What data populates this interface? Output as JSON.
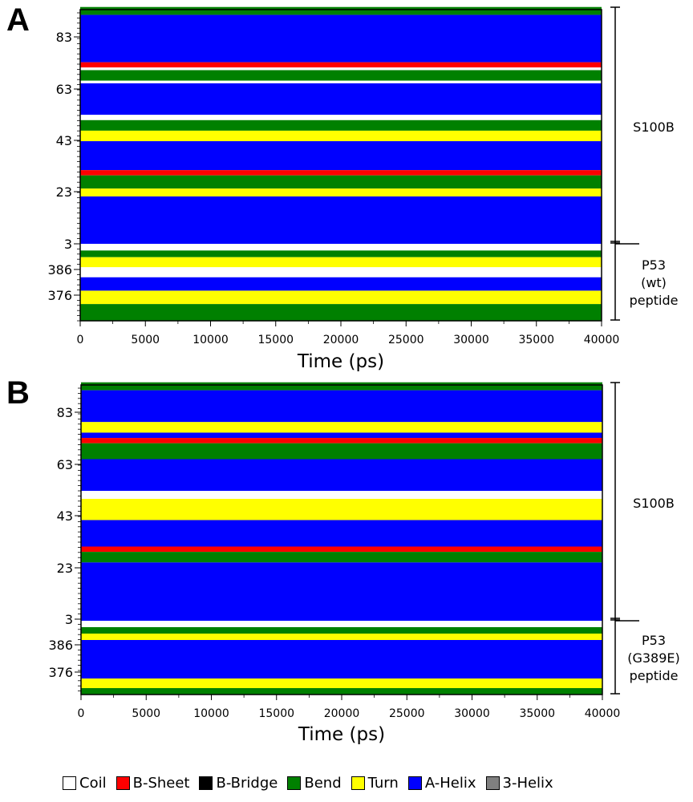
{
  "chart_data": [
    {
      "type": "heatmap",
      "panel_label": "A",
      "xlabel": "Time (ps)",
      "xlim": [
        0,
        40000
      ],
      "x_ticks": [
        0,
        5000,
        10000,
        15000,
        20000,
        25000,
        30000,
        35000,
        40000
      ],
      "x_tick_labels": [
        "0",
        "5000",
        "10000",
        "15000",
        "20000",
        "25000",
        "30000",
        "35000",
        "40000"
      ],
      "y_tick_labels": [
        "83",
        "63",
        "43",
        "23",
        "3",
        "386",
        "376"
      ],
      "regions": [
        {
          "name": "S100B",
          "label_lines": [
            "S100B"
          ],
          "residues": [
            3,
            92
          ]
        },
        {
          "name": "P53 (wt) peptide",
          "label_lines": [
            "P53",
            "(wt)",
            "peptide"
          ],
          "residues": [
            367,
            390
          ]
        }
      ],
      "bands": [
        {
          "region": 0,
          "from": 90,
          "to": 93,
          "state": "Bend"
        },
        {
          "region": 0,
          "from": 72,
          "to": 90,
          "state": "A-Helix"
        },
        {
          "region": 0,
          "from": 70,
          "to": 72,
          "state": "B-Sheet"
        },
        {
          "region": 0,
          "from": 69,
          "to": 70,
          "state": "Coil"
        },
        {
          "region": 0,
          "from": 65,
          "to": 69,
          "state": "Bend"
        },
        {
          "region": 0,
          "from": 64,
          "to": 65,
          "state": "Coil"
        },
        {
          "region": 0,
          "from": 52,
          "to": 64,
          "state": "A-Helix"
        },
        {
          "region": 0,
          "from": 50,
          "to": 52,
          "state": "Coil"
        },
        {
          "region": 0,
          "from": 46,
          "to": 50,
          "state": "Bend"
        },
        {
          "region": 0,
          "from": 42,
          "to": 46,
          "state": "Turn"
        },
        {
          "region": 0,
          "from": 31,
          "to": 42,
          "state": "A-Helix"
        },
        {
          "region": 0,
          "from": 29,
          "to": 31,
          "state": "B-Sheet"
        },
        {
          "region": 0,
          "from": 24,
          "to": 29,
          "state": "Bend"
        },
        {
          "region": 0,
          "from": 21,
          "to": 24,
          "state": "Turn"
        },
        {
          "region": 0,
          "from": 3,
          "to": 21,
          "state": "A-Helix"
        },
        {
          "region": 1,
          "from": 388,
          "to": 390,
          "state": "Coil"
        },
        {
          "region": 1,
          "from": 386,
          "to": 388,
          "state": "Bend"
        },
        {
          "region": 1,
          "from": 383,
          "to": 386,
          "state": "Turn"
        },
        {
          "region": 1,
          "from": 380,
          "to": 383,
          "state": "Coil"
        },
        {
          "region": 1,
          "from": 376,
          "to": 380,
          "state": "A-Helix"
        },
        {
          "region": 1,
          "from": 372,
          "to": 376,
          "state": "Turn"
        },
        {
          "region": 1,
          "from": 367,
          "to": 372,
          "state": "Bend"
        }
      ]
    },
    {
      "type": "heatmap",
      "panel_label": "B",
      "xlabel": "Time (ps)",
      "xlim": [
        0,
        40000
      ],
      "x_ticks": [
        0,
        5000,
        10000,
        15000,
        20000,
        25000,
        30000,
        35000,
        40000
      ],
      "x_tick_labels": [
        "0",
        "5000",
        "10000",
        "15000",
        "20000",
        "25000",
        "30000",
        "35000",
        "40000"
      ],
      "y_tick_labels": [
        "83",
        "63",
        "43",
        "23",
        "3",
        "386",
        "376"
      ],
      "regions": [
        {
          "name": "S100B",
          "label_lines": [
            "S100B"
          ],
          "residues": [
            3,
            92
          ]
        },
        {
          "name": "P53 (G389E) peptide",
          "label_lines": [
            "P53",
            "(G389E)",
            "peptide"
          ],
          "residues": [
            367,
            390
          ]
        }
      ],
      "bands": [
        {
          "region": 0,
          "from": 90,
          "to": 93,
          "state": "Bend"
        },
        {
          "region": 0,
          "from": 78,
          "to": 90,
          "state": "A-Helix"
        },
        {
          "region": 0,
          "from": 74,
          "to": 78,
          "state": "Turn"
        },
        {
          "region": 0,
          "from": 72,
          "to": 74,
          "state": "A-Helix"
        },
        {
          "region": 0,
          "from": 70,
          "to": 72,
          "state": "B-Sheet"
        },
        {
          "region": 0,
          "from": 64,
          "to": 70,
          "state": "Bend"
        },
        {
          "region": 0,
          "from": 52,
          "to": 64,
          "state": "A-Helix"
        },
        {
          "region": 0,
          "from": 49,
          "to": 52,
          "state": "Coil"
        },
        {
          "region": 0,
          "from": 41,
          "to": 49,
          "state": "Turn"
        },
        {
          "region": 0,
          "from": 31,
          "to": 41,
          "state": "A-Helix"
        },
        {
          "region": 0,
          "from": 29,
          "to": 31,
          "state": "B-Sheet"
        },
        {
          "region": 0,
          "from": 25,
          "to": 29,
          "state": "Bend"
        },
        {
          "region": 0,
          "from": 3,
          "to": 25,
          "state": "A-Helix"
        },
        {
          "region": 1,
          "from": 388,
          "to": 390,
          "state": "Coil"
        },
        {
          "region": 1,
          "from": 386,
          "to": 388,
          "state": "Bend"
        },
        {
          "region": 1,
          "from": 384,
          "to": 386,
          "state": "Turn"
        },
        {
          "region": 1,
          "from": 372,
          "to": 384,
          "state": "A-Helix"
        },
        {
          "region": 1,
          "from": 369,
          "to": 372,
          "state": "Turn"
        },
        {
          "region": 1,
          "from": 367,
          "to": 369,
          "state": "Bend"
        }
      ]
    }
  ],
  "legend": {
    "items": [
      {
        "label": "Coil",
        "color": "#ffffff"
      },
      {
        "label": "B-Sheet",
        "color": "#ff0000"
      },
      {
        "label": "B-Bridge",
        "color": "#000000"
      },
      {
        "label": "Bend",
        "color": "#008000"
      },
      {
        "label": "Turn",
        "color": "#ffff00"
      },
      {
        "label": "A-Helix",
        "color": "#0000ff"
      },
      {
        "label": "3-Helix",
        "color": "#808080"
      }
    ]
  }
}
